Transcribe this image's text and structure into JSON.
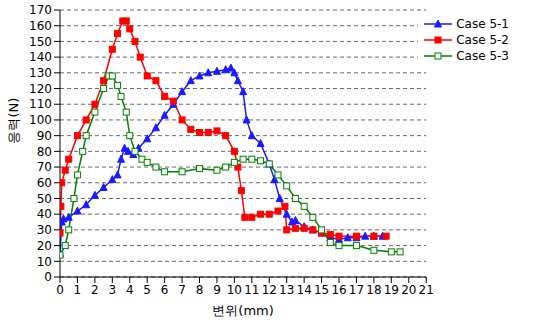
{
  "chart_data": {
    "type": "line",
    "x_label": "변위(mm)",
    "y_label": "응력(N)",
    "xlim": [
      0,
      21
    ],
    "xticks": [
      0,
      1,
      2,
      3,
      4,
      5,
      6,
      7,
      8,
      9,
      10,
      11,
      12,
      13,
      14,
      15,
      16,
      17,
      18,
      19,
      20,
      21
    ],
    "ylim": [
      0,
      170
    ],
    "yticks": [
      0,
      10,
      20,
      30,
      40,
      50,
      60,
      70,
      80,
      90,
      100,
      110,
      120,
      130,
      140,
      150,
      160,
      170
    ],
    "grid": true,
    "legend": "upper right",
    "series": [
      {
        "name": "Case 5-1",
        "color": "#1a1aff",
        "marker": "triangle",
        "x": [
          0,
          0.1,
          0.2,
          0.5,
          1,
          1.5,
          2,
          2.5,
          3,
          3.3,
          3.5,
          3.7,
          3.9,
          4.2,
          4.5,
          5,
          5.5,
          6,
          6.5,
          7,
          7.5,
          8,
          8.5,
          9,
          9.5,
          9.8,
          10,
          10.2,
          10.5,
          10.7,
          11,
          11.5,
          12,
          12.3,
          12.6,
          13,
          13.3,
          13.5,
          14,
          14.5,
          15,
          15.5,
          16,
          16.5,
          17,
          17.5,
          18,
          18.5
        ],
        "values": [
          15,
          35,
          37,
          38,
          42,
          46,
          52,
          57,
          62,
          65,
          75,
          82,
          80,
          78,
          82,
          88,
          95,
          103,
          110,
          118,
          125,
          128,
          130,
          131,
          132,
          133,
          130,
          125,
          118,
          100,
          90,
          85,
          72,
          62,
          50,
          40,
          35,
          36,
          32,
          30,
          28,
          25,
          24,
          25,
          25,
          26,
          26,
          26
        ]
      },
      {
        "name": "Case 5-2",
        "color": "#ff0000",
        "marker": "square",
        "x": [
          0,
          0.05,
          0.1,
          0.3,
          0.5,
          1,
          1.5,
          2,
          2.5,
          3,
          3.3,
          3.6,
          3.8,
          4,
          4.3,
          4.6,
          5,
          5.5,
          6,
          6.5,
          7,
          7.5,
          8,
          8.5,
          9,
          9.5,
          10,
          10.2,
          10.4,
          10.6,
          11,
          11.5,
          12,
          12.5,
          12.9,
          13,
          13.5,
          14,
          14.5,
          15,
          15.5,
          16,
          17,
          18,
          18.7
        ],
        "values": [
          28,
          45,
          60,
          68,
          75,
          90,
          100,
          110,
          125,
          145,
          155,
          163,
          163,
          158,
          150,
          140,
          128,
          125,
          115,
          112,
          100,
          94,
          92,
          92,
          93,
          90,
          80,
          70,
          55,
          38,
          38,
          40,
          40,
          42,
          45,
          30,
          31,
          31,
          30,
          28,
          27,
          26,
          26,
          26,
          26
        ]
      },
      {
        "name": "Case 5-3",
        "color": "#008000",
        "marker": "square_open",
        "x": [
          0,
          0.3,
          0.5,
          0.8,
          1,
          1.3,
          1.5,
          2,
          2.5,
          2.8,
          3,
          3.3,
          3.5,
          3.8,
          4,
          4.3,
          4.7,
          5,
          5.5,
          6,
          7,
          8,
          9,
          9.5,
          10,
          10.5,
          11,
          11.5,
          12,
          12.5,
          13,
          13.5,
          14,
          14.5,
          15,
          15.5,
          16,
          17,
          18,
          19,
          19.5
        ],
        "values": [
          14,
          20,
          30,
          50,
          65,
          80,
          90,
          105,
          120,
          128,
          128,
          122,
          115,
          105,
          90,
          80,
          75,
          73,
          70,
          67,
          67,
          69,
          68,
          70,
          73,
          75,
          75,
          74,
          72,
          65,
          58,
          50,
          45,
          38,
          30,
          22,
          20,
          20,
          17,
          16,
          16
        ]
      }
    ]
  }
}
